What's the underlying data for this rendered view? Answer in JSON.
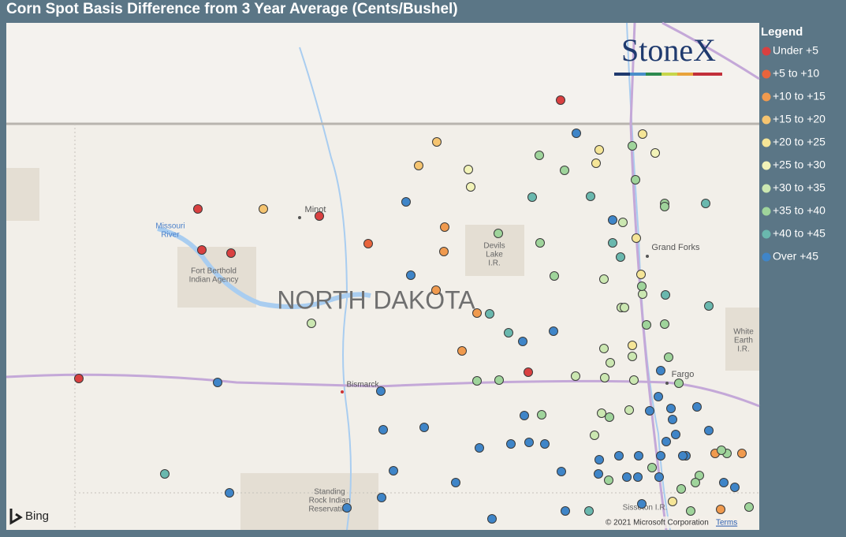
{
  "title": "Corn Spot Basis Difference from 3 Year Average (Cents/Bushel)",
  "legend": {
    "title": "Legend",
    "items": [
      {
        "label": "Under +5",
        "color": "#d94040"
      },
      {
        "label": "+5 to +10",
        "color": "#e8643c"
      },
      {
        "label": "+10 to +15",
        "color": "#f09a4e"
      },
      {
        "label": "+15 to +20",
        "color": "#f5c470"
      },
      {
        "label": "+20 to +25",
        "color": "#f5e597"
      },
      {
        "label": "+25 to +30",
        "color": "#f2f3b8"
      },
      {
        "label": "+30 to +35",
        "color": "#cbe7b1"
      },
      {
        "label": "+35 to +40",
        "color": "#9fd49b"
      },
      {
        "label": "+40 to +45",
        "color": "#6ab8ae"
      },
      {
        "label": "Over +45",
        "color": "#3f85c8"
      }
    ]
  },
  "logo": "StoneX",
  "map": {
    "state": "NORTH DAKOTA",
    "places": [
      {
        "lines": [
          "Missouri",
          "River"
        ]
      },
      {
        "lines": [
          "Minot"
        ]
      },
      {
        "lines": [
          "Fort Berthold",
          "Indian Agency"
        ]
      },
      {
        "lines": [
          "Devils",
          "Lake",
          "I.R."
        ]
      },
      {
        "lines": [
          "Grand Forks"
        ]
      },
      {
        "lines": [
          "White",
          "Earth",
          "I.R."
        ]
      },
      {
        "lines": [
          "Fargo"
        ]
      },
      {
        "lines": [
          "Bismarck"
        ]
      },
      {
        "lines": [
          "Standing",
          "Rock Indian",
          "Reservation"
        ]
      },
      {
        "lines": [
          "Sisseton I.R."
        ]
      }
    ]
  },
  "attribution": {
    "provider": "Bing",
    "copyright": "© 2021 Microsoft Corporation",
    "terms": "Terms"
  }
}
